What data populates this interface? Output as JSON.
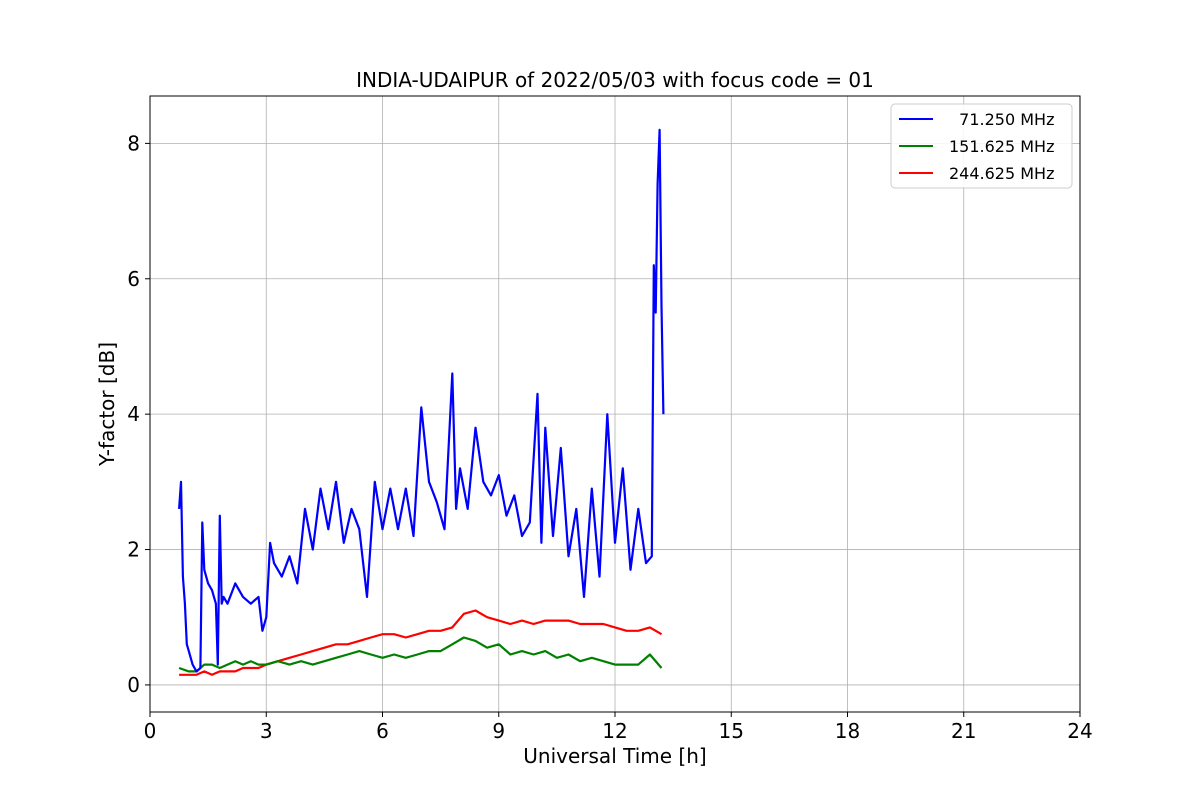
{
  "chart_data": {
    "type": "line",
    "title": "INDIA-UDAIPUR of 2022/05/03 with focus code = 01",
    "xlabel": "Universal Time [h]",
    "ylabel": "Y-factor [dB]",
    "xlim": [
      0,
      24
    ],
    "ylim": [
      -0.4,
      8.7
    ],
    "xticks": [
      0,
      3,
      6,
      9,
      12,
      15,
      18,
      21,
      24
    ],
    "yticks": [
      0,
      2,
      4,
      6,
      8
    ],
    "grid": true,
    "legend_position": "top-right",
    "series": [
      {
        "name": "  71.250 MHz",
        "color": "#0000ff",
        "x": [
          0.75,
          0.8,
          0.85,
          0.9,
          0.95,
          1.0,
          1.1,
          1.2,
          1.3,
          1.35,
          1.4,
          1.5,
          1.6,
          1.7,
          1.75,
          1.8,
          1.85,
          1.9,
          2.0,
          2.2,
          2.4,
          2.6,
          2.8,
          2.9,
          3.0,
          3.1,
          3.2,
          3.4,
          3.6,
          3.8,
          4.0,
          4.2,
          4.4,
          4.6,
          4.8,
          5.0,
          5.2,
          5.4,
          5.6,
          5.8,
          6.0,
          6.2,
          6.4,
          6.6,
          6.8,
          7.0,
          7.2,
          7.4,
          7.6,
          7.8,
          7.9,
          8.0,
          8.2,
          8.4,
          8.6,
          8.8,
          9.0,
          9.2,
          9.4,
          9.6,
          9.8,
          10.0,
          10.1,
          10.2,
          10.4,
          10.6,
          10.8,
          11.0,
          11.2,
          11.4,
          11.6,
          11.8,
          12.0,
          12.2,
          12.4,
          12.6,
          12.8,
          12.95,
          13.0,
          13.05,
          13.1,
          13.15,
          13.2,
          13.25
        ],
        "y": [
          2.6,
          3.0,
          1.6,
          1.2,
          0.6,
          0.5,
          0.3,
          0.2,
          0.25,
          2.4,
          1.7,
          1.5,
          1.4,
          1.2,
          0.3,
          2.5,
          1.2,
          1.3,
          1.2,
          1.5,
          1.3,
          1.2,
          1.3,
          0.8,
          1.0,
          2.1,
          1.8,
          1.6,
          1.9,
          1.5,
          2.6,
          2.0,
          2.9,
          2.3,
          3.0,
          2.1,
          2.6,
          2.3,
          1.3,
          3.0,
          2.3,
          2.9,
          2.3,
          2.9,
          2.2,
          4.1,
          3.0,
          2.7,
          2.3,
          4.6,
          2.6,
          3.2,
          2.6,
          3.8,
          3.0,
          2.8,
          3.1,
          2.5,
          2.8,
          2.2,
          2.4,
          4.3,
          2.1,
          3.8,
          2.2,
          3.5,
          1.9,
          2.6,
          1.3,
          2.9,
          1.6,
          4.0,
          2.1,
          3.2,
          1.7,
          2.6,
          1.8,
          1.9,
          6.2,
          5.5,
          7.4,
          8.2,
          5.6,
          4.0
        ]
      },
      {
        "name": "151.625 MHz",
        "color": "#008000",
        "x": [
          0.75,
          1.0,
          1.2,
          1.4,
          1.6,
          1.8,
          2.0,
          2.2,
          2.4,
          2.6,
          2.8,
          3.0,
          3.3,
          3.6,
          3.9,
          4.2,
          4.5,
          4.8,
          5.1,
          5.4,
          5.7,
          6.0,
          6.3,
          6.6,
          6.9,
          7.2,
          7.5,
          7.8,
          8.1,
          8.4,
          8.7,
          9.0,
          9.3,
          9.6,
          9.9,
          10.2,
          10.5,
          10.8,
          11.1,
          11.4,
          11.7,
          12.0,
          12.3,
          12.6,
          12.9,
          13.2
        ],
        "y": [
          0.25,
          0.2,
          0.2,
          0.3,
          0.3,
          0.25,
          0.3,
          0.35,
          0.3,
          0.35,
          0.3,
          0.3,
          0.35,
          0.3,
          0.35,
          0.3,
          0.35,
          0.4,
          0.45,
          0.5,
          0.45,
          0.4,
          0.45,
          0.4,
          0.45,
          0.5,
          0.5,
          0.6,
          0.7,
          0.65,
          0.55,
          0.6,
          0.45,
          0.5,
          0.45,
          0.5,
          0.4,
          0.45,
          0.35,
          0.4,
          0.35,
          0.3,
          0.3,
          0.3,
          0.45,
          0.25
        ]
      },
      {
        "name": "244.625 MHz",
        "color": "#ff0000",
        "x": [
          0.75,
          1.0,
          1.2,
          1.4,
          1.6,
          1.8,
          2.0,
          2.2,
          2.4,
          2.6,
          2.8,
          3.0,
          3.3,
          3.6,
          3.9,
          4.2,
          4.5,
          4.8,
          5.1,
          5.4,
          5.7,
          6.0,
          6.3,
          6.6,
          6.9,
          7.2,
          7.5,
          7.8,
          8.1,
          8.4,
          8.7,
          9.0,
          9.3,
          9.6,
          9.9,
          10.2,
          10.5,
          10.8,
          11.1,
          11.4,
          11.7,
          12.0,
          12.3,
          12.6,
          12.9,
          13.2
        ],
        "y": [
          0.15,
          0.15,
          0.15,
          0.2,
          0.15,
          0.2,
          0.2,
          0.2,
          0.25,
          0.25,
          0.25,
          0.3,
          0.35,
          0.4,
          0.45,
          0.5,
          0.55,
          0.6,
          0.6,
          0.65,
          0.7,
          0.75,
          0.75,
          0.7,
          0.75,
          0.8,
          0.8,
          0.85,
          1.05,
          1.1,
          1.0,
          0.95,
          0.9,
          0.95,
          0.9,
          0.95,
          0.95,
          0.95,
          0.9,
          0.9,
          0.9,
          0.85,
          0.8,
          0.8,
          0.85,
          0.75
        ]
      }
    ]
  }
}
